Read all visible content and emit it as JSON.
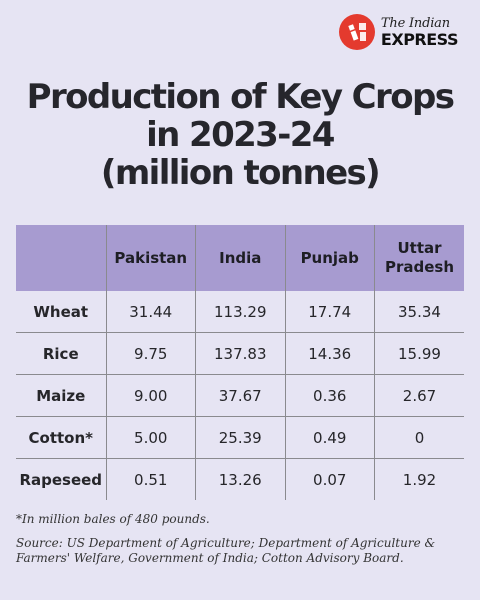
{
  "brand": {
    "name_top": "The Indian",
    "name_bottom": "EXPRESS",
    "logo_color": "#e43a2e"
  },
  "chart_data": {
    "type": "table",
    "title_lines": [
      "Production of Key Crops",
      "in 2023-24",
      "(million tonnes)"
    ],
    "columns": [
      "",
      "Pakistan",
      "India",
      "Punjab",
      "Uttar Pradesh"
    ],
    "column_lines": [
      [
        ""
      ],
      [
        "Pakistan"
      ],
      [
        "India"
      ],
      [
        "Punjab"
      ],
      [
        "Uttar",
        "Pradesh"
      ]
    ],
    "rows": [
      {
        "crop": "Wheat",
        "values": [
          "31.44",
          "113.29",
          "17.74",
          "35.34"
        ]
      },
      {
        "crop": "Rice",
        "values": [
          "9.75",
          "137.83",
          "14.36",
          "15.99"
        ]
      },
      {
        "crop": "Maize",
        "values": [
          "9.00",
          "37.67",
          "0.36",
          "2.67"
        ]
      },
      {
        "crop": "Cotton*",
        "values": [
          "5.00",
          "25.39",
          "0.49",
          "0"
        ]
      },
      {
        "crop": "Rapeseed",
        "values": [
          "0.51",
          "13.26",
          "0.07",
          "1.92"
        ]
      }
    ],
    "header_color": "#a79bd0",
    "background_color": "#e6e4f3"
  },
  "footnote": "*In million bales of 480 pounds.",
  "source": "Source: US Department of Agriculture; Department of Agriculture & Farmers' Welfare, Government of India; Cotton Advisory Board."
}
